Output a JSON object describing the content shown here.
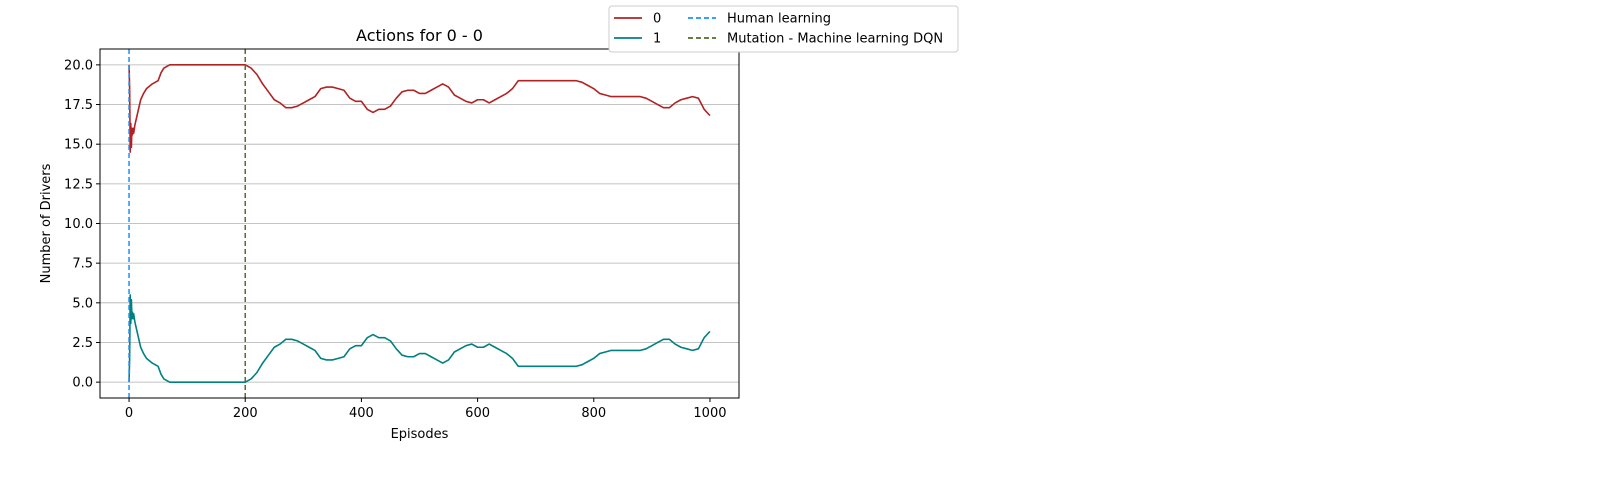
{
  "chart_data": {
    "type": "line",
    "title": "Actions for 0 - 0",
    "xlabel": "Episodes",
    "ylabel": "Number of Drivers",
    "xlim": [
      -50,
      1050
    ],
    "ylim": [
      -1.0,
      21.0
    ],
    "xticks": [
      0,
      200,
      400,
      600,
      800,
      1000
    ],
    "xtick_labels": [
      "0",
      "200",
      "400",
      "600",
      "800",
      "1000"
    ],
    "yticks": [
      0.0,
      2.5,
      5.0,
      7.5,
      10.0,
      12.5,
      15.0,
      17.5,
      20.0
    ],
    "ytick_labels": [
      "0.0",
      "2.5",
      "5.0",
      "7.5",
      "10.0",
      "12.5",
      "15.0",
      "17.5",
      "20.0"
    ],
    "grid": "horizontal",
    "legend_position": "top-right outside",
    "series": [
      {
        "name": "0",
        "color": "#b22222",
        "x": [
          0,
          1,
          2,
          3,
          4,
          5,
          6,
          7,
          8,
          10,
          15,
          20,
          25,
          30,
          40,
          50,
          55,
          60,
          65,
          70,
          75,
          80,
          90,
          100,
          150,
          200,
          210,
          220,
          230,
          240,
          250,
          260,
          270,
          280,
          290,
          300,
          310,
          320,
          330,
          340,
          350,
          360,
          370,
          380,
          390,
          400,
          410,
          420,
          430,
          440,
          450,
          460,
          470,
          480,
          490,
          500,
          510,
          520,
          530,
          540,
          550,
          560,
          570,
          580,
          590,
          600,
          610,
          620,
          630,
          640,
          650,
          660,
          670,
          680,
          690,
          700,
          710,
          720,
          730,
          740,
          750,
          760,
          770,
          780,
          790,
          800,
          810,
          820,
          830,
          840,
          850,
          860,
          870,
          880,
          890,
          900,
          910,
          920,
          930,
          940,
          950,
          960,
          970,
          980,
          990,
          1000
        ],
        "y": [
          20.0,
          18.5,
          14.5,
          16.3,
          14.8,
          16.0,
          15.6,
          16.0,
          15.7,
          16.2,
          17.0,
          17.8,
          18.2,
          18.5,
          18.8,
          19.0,
          19.5,
          19.8,
          19.9,
          20.0,
          20.0,
          20.0,
          20.0,
          20.0,
          20.0,
          20.0,
          19.8,
          19.4,
          18.8,
          18.3,
          17.8,
          17.6,
          17.3,
          17.3,
          17.4,
          17.6,
          17.8,
          18.0,
          18.5,
          18.6,
          18.6,
          18.5,
          18.4,
          17.9,
          17.7,
          17.7,
          17.2,
          17.0,
          17.2,
          17.2,
          17.4,
          17.9,
          18.3,
          18.4,
          18.4,
          18.2,
          18.2,
          18.4,
          18.6,
          18.8,
          18.6,
          18.1,
          17.9,
          17.7,
          17.6,
          17.8,
          17.8,
          17.6,
          17.8,
          18.0,
          18.2,
          18.5,
          19.0,
          19.0,
          19.0,
          19.0,
          19.0,
          19.0,
          19.0,
          19.0,
          19.0,
          19.0,
          19.0,
          18.9,
          18.7,
          18.5,
          18.2,
          18.1,
          18.0,
          18.0,
          18.0,
          18.0,
          18.0,
          18.0,
          17.9,
          17.7,
          17.5,
          17.3,
          17.3,
          17.6,
          17.8,
          17.9,
          18.0,
          17.9,
          17.2,
          16.8
        ]
      },
      {
        "name": "1",
        "color": "#008080",
        "x": [
          0,
          1,
          2,
          3,
          4,
          5,
          6,
          7,
          8,
          10,
          15,
          20,
          25,
          30,
          40,
          50,
          55,
          60,
          65,
          70,
          75,
          80,
          90,
          100,
          150,
          200,
          210,
          220,
          230,
          240,
          250,
          260,
          270,
          280,
          290,
          300,
          310,
          320,
          330,
          340,
          350,
          360,
          370,
          380,
          390,
          400,
          410,
          420,
          430,
          440,
          450,
          460,
          470,
          480,
          490,
          500,
          510,
          520,
          530,
          540,
          550,
          560,
          570,
          580,
          590,
          600,
          610,
          620,
          630,
          640,
          650,
          660,
          670,
          680,
          690,
          700,
          710,
          720,
          730,
          740,
          750,
          760,
          770,
          780,
          790,
          800,
          810,
          820,
          830,
          840,
          850,
          860,
          870,
          880,
          890,
          900,
          910,
          920,
          930,
          940,
          950,
          960,
          970,
          980,
          990,
          1000
        ],
        "y": [
          0.0,
          1.5,
          5.5,
          3.7,
          5.2,
          4.0,
          4.4,
          4.0,
          4.3,
          3.8,
          3.0,
          2.2,
          1.8,
          1.5,
          1.2,
          1.0,
          0.5,
          0.2,
          0.1,
          0.0,
          0.0,
          0.0,
          0.0,
          0.0,
          0.0,
          0.0,
          0.2,
          0.6,
          1.2,
          1.7,
          2.2,
          2.4,
          2.7,
          2.7,
          2.6,
          2.4,
          2.2,
          2.0,
          1.5,
          1.4,
          1.4,
          1.5,
          1.6,
          2.1,
          2.3,
          2.3,
          2.8,
          3.0,
          2.8,
          2.8,
          2.6,
          2.1,
          1.7,
          1.6,
          1.6,
          1.8,
          1.8,
          1.6,
          1.4,
          1.2,
          1.4,
          1.9,
          2.1,
          2.3,
          2.4,
          2.2,
          2.2,
          2.4,
          2.2,
          2.0,
          1.8,
          1.5,
          1.0,
          1.0,
          1.0,
          1.0,
          1.0,
          1.0,
          1.0,
          1.0,
          1.0,
          1.0,
          1.0,
          1.1,
          1.3,
          1.5,
          1.8,
          1.9,
          2.0,
          2.0,
          2.0,
          2.0,
          2.0,
          2.0,
          2.1,
          2.3,
          2.5,
          2.7,
          2.7,
          2.4,
          2.2,
          2.1,
          2.0,
          2.1,
          2.8,
          3.2
        ]
      }
    ],
    "vlines": [
      {
        "name": "Human learning",
        "x": 0,
        "color": "#1e90ff"
      },
      {
        "name": "Mutation - Machine learning DQN",
        "x": 200,
        "color": "#556b2f"
      }
    ]
  }
}
